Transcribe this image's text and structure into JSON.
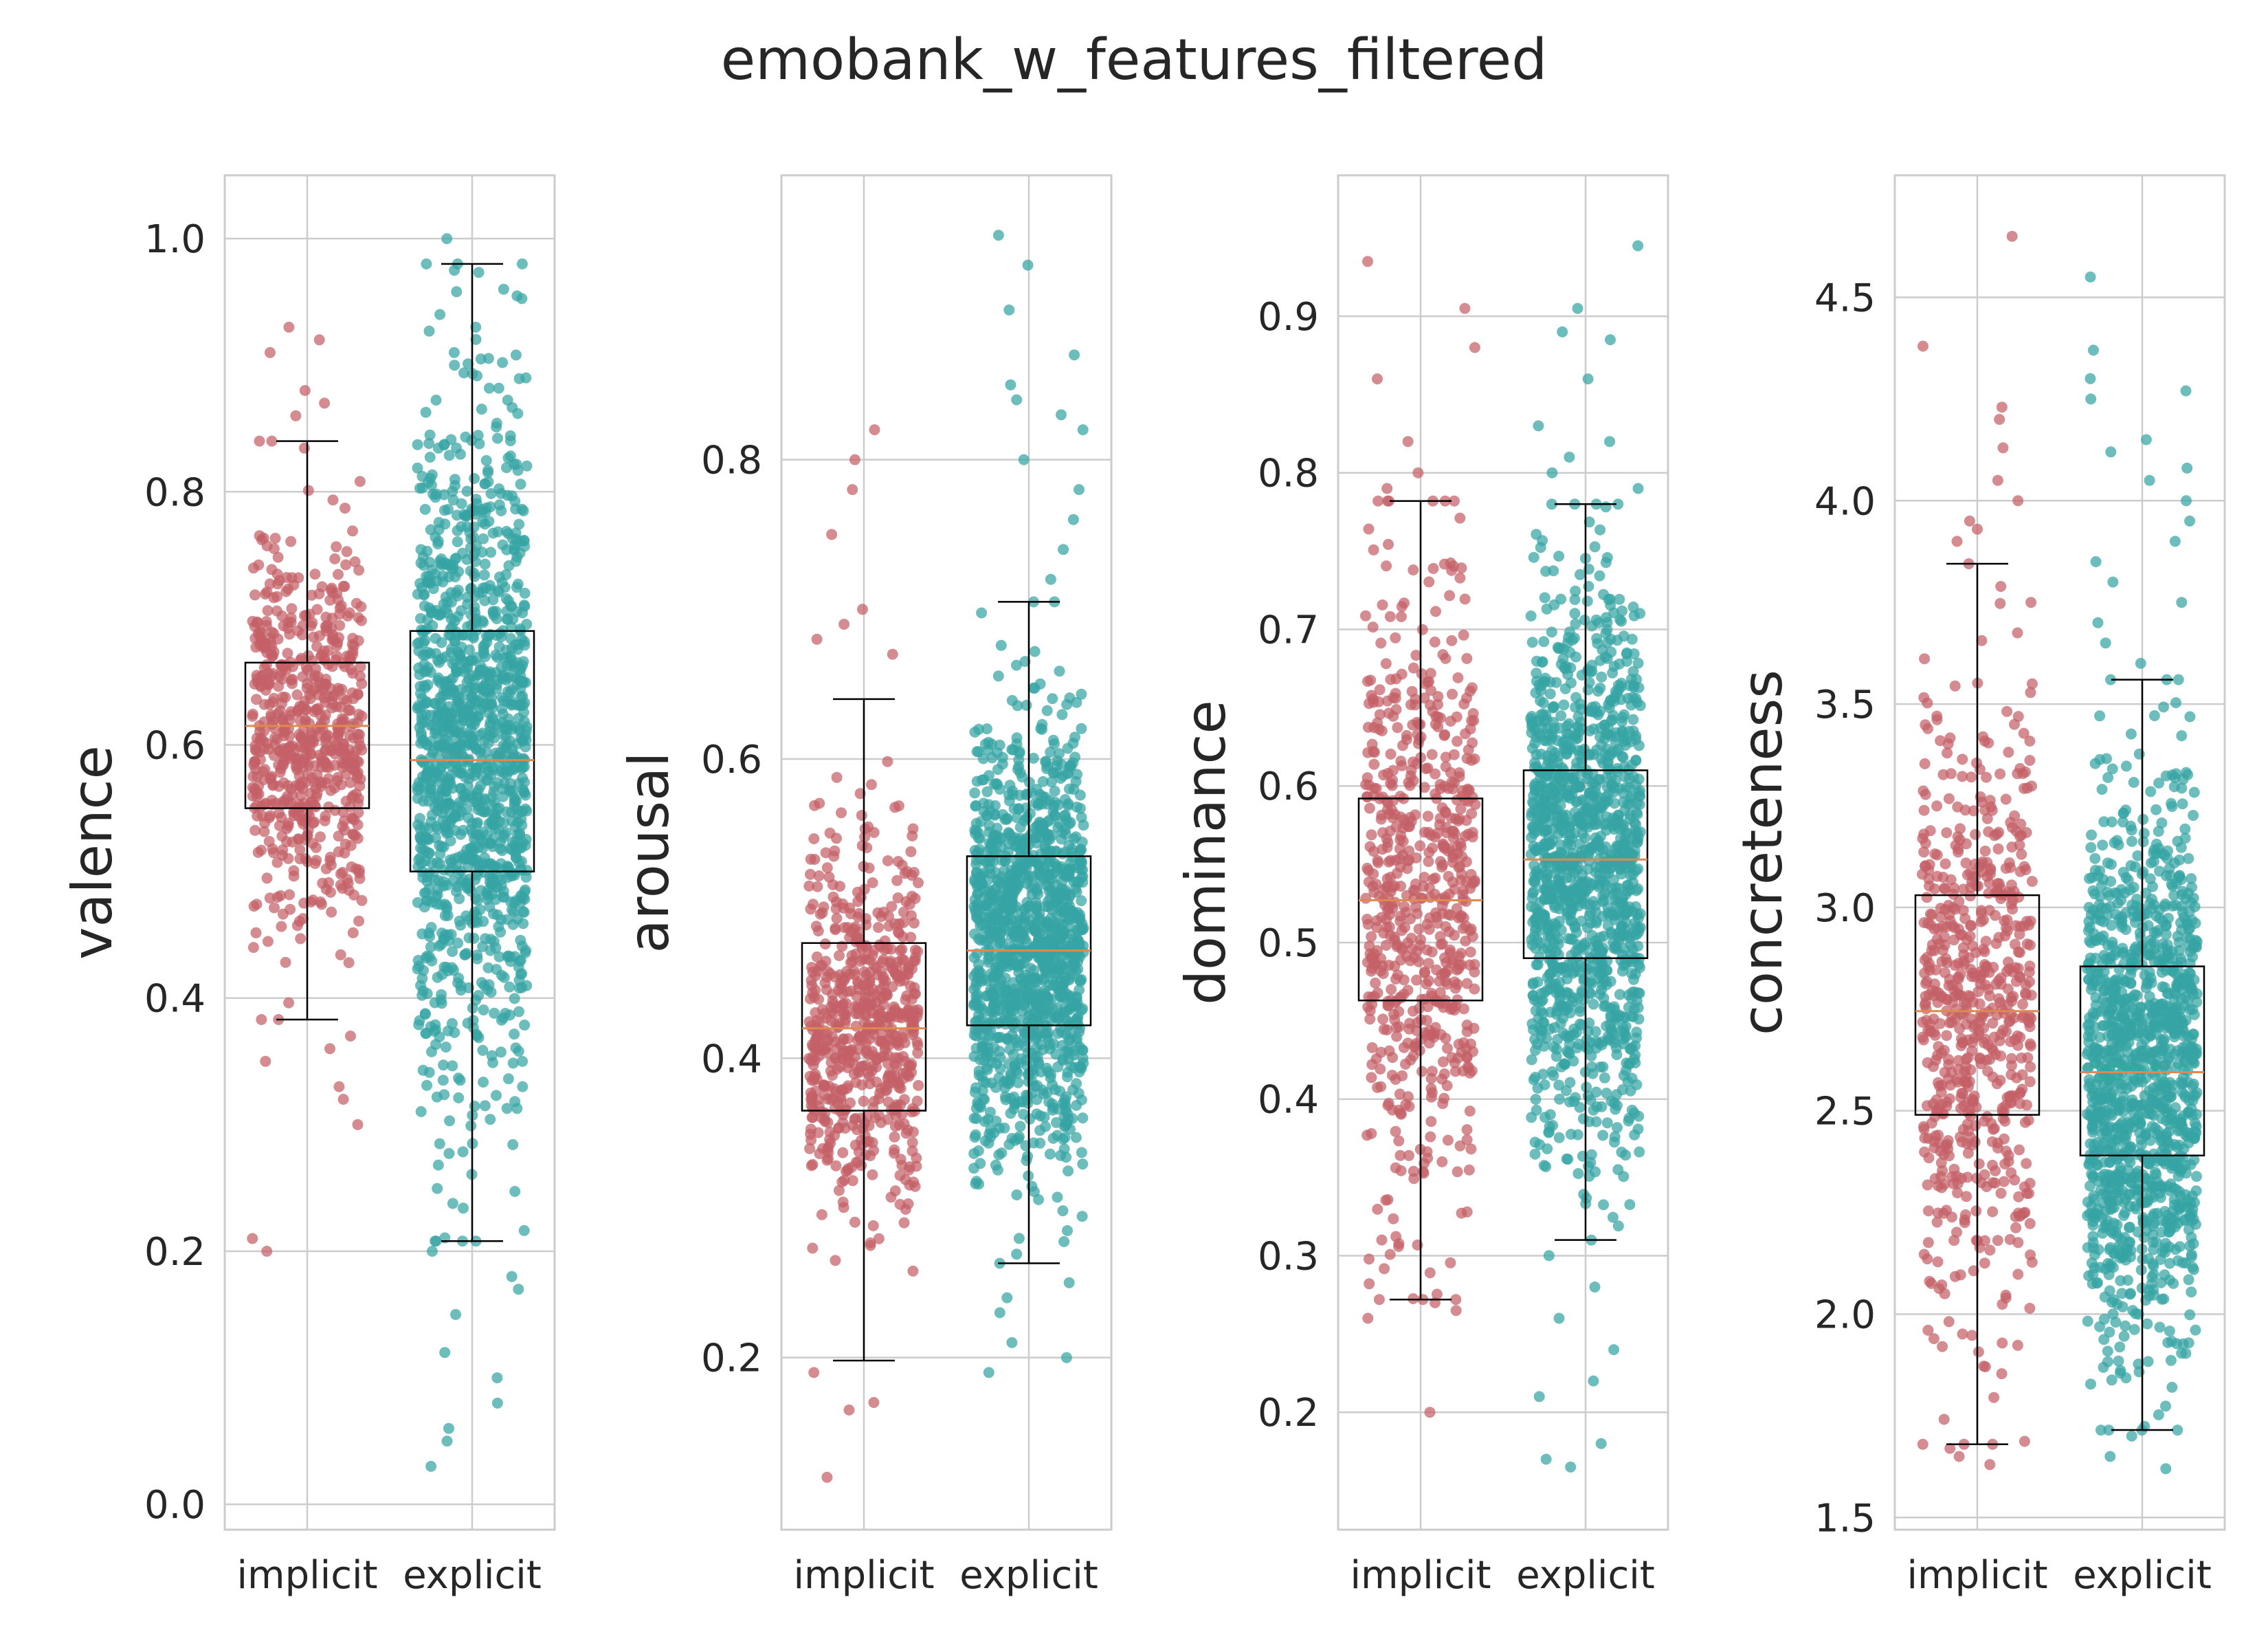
{
  "title": "emobank_w_features_filtered",
  "colors": {
    "implicit": "#c45f66",
    "explicit": "#36a3a3",
    "median": "#e0894d"
  },
  "chart_data": [
    {
      "type": "box",
      "ylabel": "valence",
      "categories": [
        "implicit",
        "explicit"
      ],
      "yticks": [
        "0.0",
        "0.2",
        "0.4",
        "0.6",
        "0.8",
        "1.0"
      ],
      "ylim": [
        -0.02,
        1.05
      ],
      "grid": true,
      "series": [
        {
          "name": "implicit",
          "whisker_low": 0.383,
          "q1": 0.55,
          "median": 0.615,
          "q3": 0.665,
          "whisker_high": 0.84,
          "point_count": 650,
          "center": 0.61,
          "spread": 0.075,
          "outliers": [
            0.93,
            0.92,
            0.91,
            0.88,
            0.87,
            0.86,
            0.37,
            0.36,
            0.35,
            0.33,
            0.32,
            0.3,
            0.21,
            0.2
          ]
        },
        {
          "name": "explicit",
          "whisker_low": 0.208,
          "q1": 0.5,
          "median": 0.588,
          "q3": 0.69,
          "whisker_high": 0.98,
          "point_count": 1300,
          "center": 0.595,
          "spread": 0.13,
          "outliers": [
            1.0,
            0.975,
            0.96,
            0.94,
            0.93,
            0.91,
            0.9,
            0.89,
            0.2,
            0.18,
            0.17,
            0.15,
            0.12,
            0.1,
            0.08,
            0.06,
            0.05,
            0.03
          ]
        }
      ]
    },
    {
      "type": "box",
      "ylabel": "arousal",
      "categories": [
        "implicit",
        "explicit"
      ],
      "yticks": [
        "0.2",
        "0.4",
        "0.6",
        "0.8"
      ],
      "ylim": [
        0.085,
        0.99
      ],
      "grid": true,
      "series": [
        {
          "name": "implicit",
          "whisker_low": 0.198,
          "q1": 0.365,
          "median": 0.42,
          "q3": 0.477,
          "whisker_high": 0.64,
          "point_count": 650,
          "center": 0.42,
          "spread": 0.06,
          "outliers": [
            0.82,
            0.8,
            0.78,
            0.75,
            0.7,
            0.69,
            0.68,
            0.67,
            0.19,
            0.17,
            0.165,
            0.12
          ]
        },
        {
          "name": "explicit",
          "whisker_low": 0.263,
          "q1": 0.422,
          "median": 0.472,
          "q3": 0.535,
          "whisker_high": 0.705,
          "point_count": 1300,
          "center": 0.475,
          "spread": 0.07,
          "outliers": [
            0.95,
            0.93,
            0.9,
            0.87,
            0.85,
            0.84,
            0.83,
            0.82,
            0.8,
            0.78,
            0.76,
            0.74,
            0.72,
            0.25,
            0.24,
            0.23,
            0.21,
            0.2,
            0.19
          ]
        }
      ]
    },
    {
      "type": "box",
      "ylabel": "dominance",
      "categories": [
        "implicit",
        "explicit"
      ],
      "yticks": [
        "0.2",
        "0.3",
        "0.4",
        "0.5",
        "0.6",
        "0.7",
        "0.8",
        "0.9"
      ],
      "ylim": [
        0.125,
        0.99
      ],
      "grid": true,
      "series": [
        {
          "name": "implicit",
          "whisker_low": 0.272,
          "q1": 0.463,
          "median": 0.527,
          "q3": 0.592,
          "whisker_high": 0.782,
          "point_count": 650,
          "center": 0.527,
          "spread": 0.095,
          "outliers": [
            0.935,
            0.905,
            0.88,
            0.86,
            0.82,
            0.8,
            0.79,
            0.27,
            0.265,
            0.26,
            0.2
          ]
        },
        {
          "name": "explicit",
          "whisker_low": 0.31,
          "q1": 0.49,
          "median": 0.553,
          "q3": 0.61,
          "whisker_high": 0.78,
          "point_count": 1300,
          "center": 0.55,
          "spread": 0.085,
          "outliers": [
            0.945,
            0.905,
            0.89,
            0.885,
            0.86,
            0.83,
            0.82,
            0.81,
            0.8,
            0.79,
            0.3,
            0.28,
            0.26,
            0.24,
            0.22,
            0.21,
            0.18,
            0.17,
            0.165
          ]
        }
      ]
    },
    {
      "type": "box",
      "ylabel": "concreteness",
      "categories": [
        "implicit",
        "explicit"
      ],
      "yticks": [
        "1.5",
        "2.0",
        "2.5",
        "3.0",
        "3.5",
        "4.0",
        "4.5"
      ],
      "ylim": [
        1.47,
        4.8
      ],
      "grid": true,
      "series": [
        {
          "name": "implicit",
          "whisker_low": 1.68,
          "q1": 2.49,
          "median": 2.745,
          "q3": 3.03,
          "whisker_high": 3.845,
          "point_count": 650,
          "center": 2.75,
          "spread": 0.38,
          "outliers": [
            4.65,
            4.38,
            4.23,
            4.2,
            4.13,
            4.05,
            4.0,
            3.95,
            3.93,
            3.9,
            1.68,
            1.67,
            1.65,
            1.63
          ]
        },
        {
          "name": "explicit",
          "whisker_low": 1.715,
          "q1": 2.39,
          "median": 2.595,
          "q3": 2.855,
          "whisker_high": 3.56,
          "point_count": 1300,
          "center": 2.6,
          "spread": 0.32,
          "outliers": [
            4.55,
            4.37,
            4.3,
            4.27,
            4.25,
            4.15,
            4.12,
            4.08,
            4.05,
            4.0,
            3.95,
            3.9,
            3.85,
            3.8,
            3.75,
            3.7,
            3.65,
            3.6,
            1.7,
            1.65,
            1.62
          ]
        }
      ]
    }
  ]
}
